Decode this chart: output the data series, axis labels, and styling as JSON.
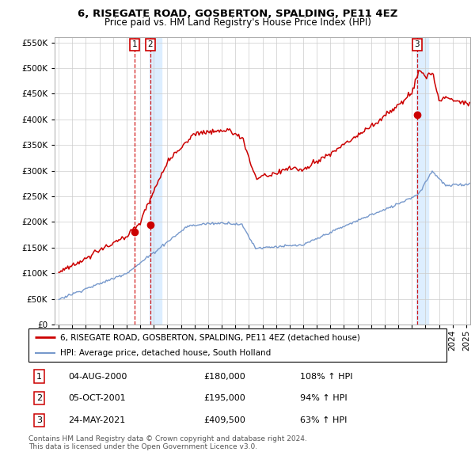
{
  "title": "6, RISEGATE ROAD, GOSBERTON, SPALDING, PE11 4EZ",
  "subtitle": "Price paid vs. HM Land Registry's House Price Index (HPI)",
  "transactions": [
    {
      "num": 1,
      "date": "04-AUG-2000",
      "price": 180000,
      "hpi_pct": 108,
      "direction": "↑",
      "x_year": 2000.58
    },
    {
      "num": 2,
      "date": "05-OCT-2001",
      "price": 195000,
      "hpi_pct": 94,
      "direction": "↑",
      "x_year": 2001.75
    },
    {
      "num": 3,
      "date": "24-MAY-2021",
      "price": 409500,
      "hpi_pct": 63,
      "direction": "↑",
      "x_year": 2021.39
    }
  ],
  "legend_property": "6, RISEGATE ROAD, GOSBERTON, SPALDING, PE11 4EZ (detached house)",
  "legend_hpi": "HPI: Average price, detached house, South Holland",
  "footer": "Contains HM Land Registry data © Crown copyright and database right 2024.\nThis data is licensed under the Open Government Licence v3.0.",
  "ylim": [
    0,
    560000
  ],
  "yticks": [
    0,
    50000,
    100000,
    150000,
    200000,
    250000,
    300000,
    350000,
    400000,
    450000,
    500000,
    550000
  ],
  "xlim_start": 1994.7,
  "xlim_end": 2025.3,
  "property_color": "#cc0000",
  "hpi_color": "#7799cc",
  "vline_color": "#cc0000",
  "shade_color": "#ddeeff",
  "background_color": "#ffffff",
  "grid_color": "#cccccc"
}
